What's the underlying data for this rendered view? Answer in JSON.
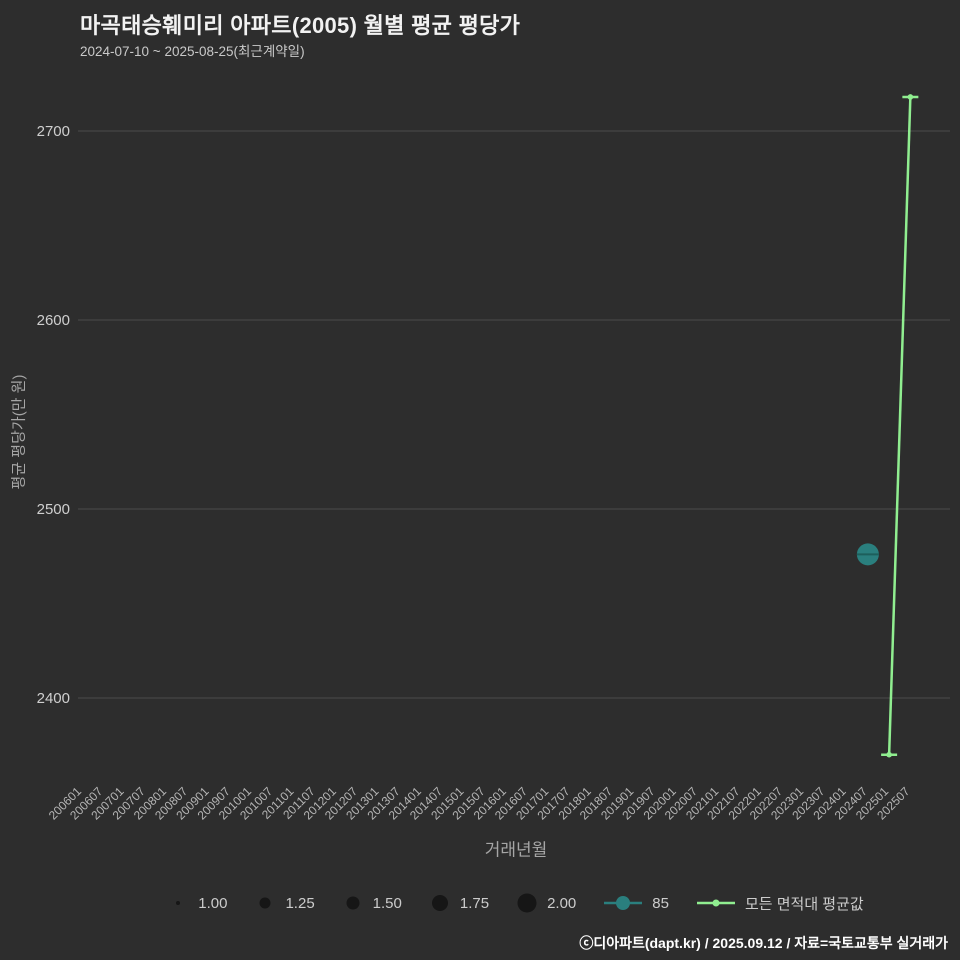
{
  "chart_data": {
    "type": "line",
    "title": "마곡태승훼미리 아파트(2005) 월별 평균 평당가",
    "subtitle": "2024-07-10 ~ 2025-08-25(최근계약일)",
    "xlabel": "거래년월",
    "ylabel": "평균 평당가(만 원)",
    "ylim": [
      2350,
      2730
    ],
    "y_ticks": [
      2400,
      2500,
      2600,
      2700
    ],
    "x_tick_labels": [
      "200601",
      "200607",
      "200701",
      "200707",
      "200801",
      "200807",
      "200901",
      "200907",
      "201001",
      "201007",
      "201101",
      "201107",
      "201201",
      "201207",
      "201301",
      "201307",
      "201401",
      "201407",
      "201501",
      "201507",
      "201601",
      "201607",
      "201701",
      "201707",
      "201801",
      "201807",
      "201901",
      "201907",
      "202001",
      "202007",
      "202101",
      "202107",
      "202201",
      "202207",
      "202301",
      "202307",
      "202401",
      "202407",
      "202501",
      "202507"
    ],
    "grid": true,
    "legend_position": "bottom",
    "x_label_rotation": -45,
    "colors": {
      "background": "#2d2d2d",
      "grid": "#4c4c4c",
      "text": "#cccccc",
      "series_85": "#2a7f7e",
      "series_avg": "#90ee90"
    },
    "series": [
      {
        "name": "85",
        "type": "scatter",
        "color": "#2a7f7e",
        "points": [
          {
            "month": "202407",
            "value": 2476,
            "size": 2.0
          }
        ]
      },
      {
        "name": "모든 면적대 평균값",
        "type": "line",
        "color": "#90ee90",
        "points": [
          {
            "month": "202501",
            "value": 2370
          },
          {
            "month": "202507",
            "value": 2718
          }
        ]
      }
    ],
    "size_legend": [
      {
        "label": "1.00",
        "r": 2
      },
      {
        "label": "1.25",
        "r": 5.5
      },
      {
        "label": "1.50",
        "r": 6.5
      },
      {
        "label": "1.75",
        "r": 8
      },
      {
        "label": "2.00",
        "r": 9.5
      }
    ]
  },
  "footer": {
    "text": "ⓒ디아파트(dapt.kr) / 2025.09.12 / 자료=국토교통부 실거래가"
  }
}
